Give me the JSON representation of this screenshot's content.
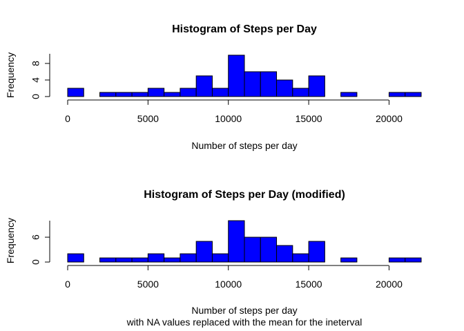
{
  "chart_data": [
    {
      "type": "bar",
      "title": "Histogram of Steps per Day",
      "xlabel": "Number of steps per day",
      "xlabel_sub": "",
      "ylabel": "Frequency",
      "bar_color": "#0000ff",
      "bin_width": 1000,
      "bin_starts": [
        0,
        1000,
        2000,
        3000,
        4000,
        5000,
        6000,
        7000,
        8000,
        9000,
        10000,
        11000,
        12000,
        13000,
        14000,
        15000,
        16000,
        17000,
        18000,
        19000,
        20000,
        21000
      ],
      "values": [
        2,
        0,
        1,
        1,
        1,
        2,
        1,
        2,
        5,
        2,
        10,
        6,
        6,
        4,
        2,
        5,
        0,
        1,
        0,
        0,
        1,
        1
      ],
      "xlim": [
        0,
        22000
      ],
      "ylim": [
        0,
        10
      ],
      "x_ticks": [
        0,
        5000,
        10000,
        15000,
        20000
      ],
      "x_tick_labels": [
        "0",
        "5000",
        "10000",
        "15000",
        "20000"
      ],
      "y_ticks": [
        0,
        4,
        8
      ],
      "y_tick_labels": [
        "0",
        "4",
        "8"
      ]
    },
    {
      "type": "bar",
      "title": "Histogram of Steps per Day (modified)",
      "xlabel": "Number of steps per day",
      "xlabel_sub": "with NA values replaced with the mean for the ineterval",
      "ylabel": "Frequency",
      "bar_color": "#0000ff",
      "bin_width": 1000,
      "bin_starts": [
        0,
        1000,
        2000,
        3000,
        4000,
        5000,
        6000,
        7000,
        8000,
        9000,
        10000,
        11000,
        12000,
        13000,
        14000,
        15000,
        16000,
        17000,
        18000,
        19000,
        20000,
        21000
      ],
      "values": [
        2,
        0,
        1,
        1,
        1,
        2,
        1,
        2,
        5,
        2,
        10,
        6,
        6,
        4,
        2,
        5,
        0,
        1,
        0,
        0,
        1,
        1
      ],
      "xlim": [
        0,
        22000
      ],
      "ylim": [
        0,
        10
      ],
      "x_ticks": [
        0,
        5000,
        10000,
        15000,
        20000
      ],
      "x_tick_labels": [
        "0",
        "5000",
        "10000",
        "15000",
        "20000"
      ],
      "y_ticks": [
        0,
        6
      ],
      "y_tick_labels": [
        "0",
        "6"
      ]
    }
  ]
}
